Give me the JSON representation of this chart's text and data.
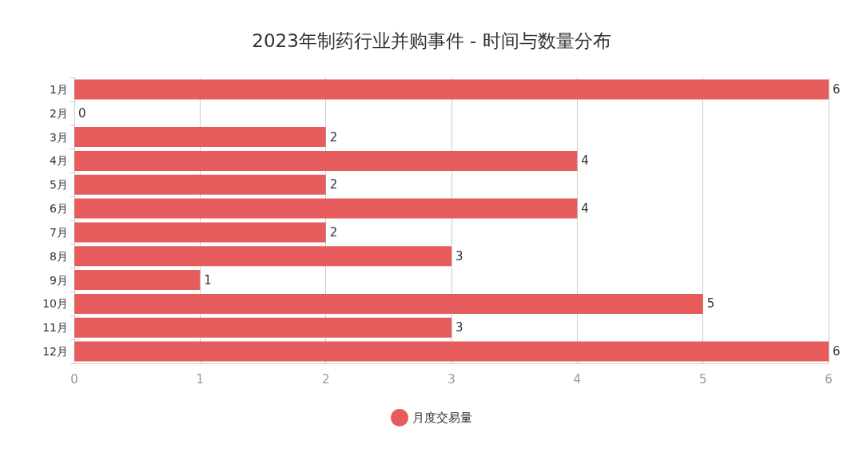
{
  "chart_data": {
    "type": "bar",
    "orientation": "horizontal",
    "title": "2023年制药行业并购事件 - 时间与数量分布",
    "categories": [
      "1月",
      "2月",
      "3月",
      "4月",
      "5月",
      "6月",
      "7月",
      "8月",
      "9月",
      "10月",
      "11月",
      "12月"
    ],
    "series": [
      {
        "name": "月度交易量",
        "color": "#e65c5c",
        "values": [
          6,
          0,
          2,
          4,
          2,
          4,
          2,
          3,
          1,
          5,
          3,
          6
        ]
      }
    ],
    "xlim": [
      0,
      6
    ],
    "xticks": [
      0,
      1,
      2,
      3,
      4,
      5,
      6
    ],
    "grid": "x",
    "legend": "bottom",
    "marker": "circle",
    "data_labels": true
  }
}
